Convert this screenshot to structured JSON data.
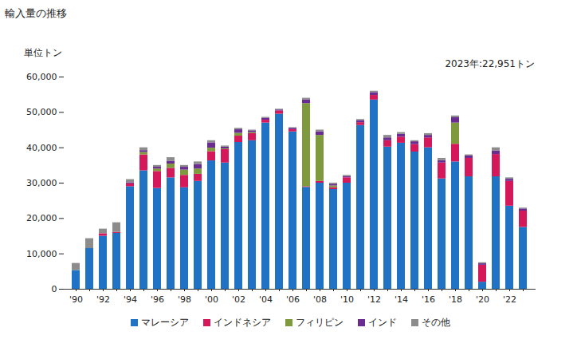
{
  "chart_data": {
    "type": "bar",
    "stacked": true,
    "title": "輸入量の推移",
    "y_label": "単位トン",
    "annotation": "2023年:22,951トン",
    "categories": [
      "'90",
      null,
      "'92",
      null,
      "'94",
      null,
      "'96",
      null,
      "'98",
      null,
      "'00",
      null,
      "'02",
      null,
      "'04",
      null,
      "'06",
      null,
      "'08",
      null,
      "'10",
      null,
      "'12",
      null,
      "'14",
      null,
      "'16",
      null,
      "'18",
      null,
      "'20",
      null,
      "'22",
      null
    ],
    "series": [
      {
        "name": "マレーシア",
        "color": "#1f72c4",
        "values": [
          5300,
          11500,
          15000,
          15800,
          29000,
          33500,
          28500,
          31500,
          28700,
          30500,
          36300,
          35700,
          41500,
          42000,
          47000,
          49500,
          44500,
          28800,
          30000,
          28200,
          30000,
          46300,
          53500,
          40200,
          41300,
          38800,
          40000,
          31200,
          36000,
          31800,
          2000,
          31800,
          23500,
          17500
        ]
      },
      {
        "name": "インドネシア",
        "color": "#d4185a",
        "values": [
          0,
          0,
          700,
          300,
          800,
          4500,
          4800,
          2700,
          3500,
          2000,
          2600,
          3800,
          1800,
          2000,
          800,
          900,
          600,
          200,
          500,
          500,
          1500,
          800,
          1300,
          1800,
          1700,
          2100,
          2800,
          4500,
          5000,
          5200,
          4800,
          6300,
          7000,
          4600
        ]
      },
      {
        "name": "フィリピン",
        "color": "#7f9a3c",
        "values": [
          0,
          0,
          0,
          0,
          0,
          700,
          700,
          1200,
          1500,
          1500,
          1000,
          200,
          800,
          300,
          0,
          0,
          0,
          23500,
          13000,
          500,
          0,
          0,
          0,
          0,
          0,
          0,
          0,
          0,
          6000,
          0,
          0,
          0,
          0,
          0
        ]
      },
      {
        "name": "インド",
        "color": "#6a2c91",
        "values": [
          0,
          0,
          0,
          0,
          300,
          500,
          500,
          800,
          800,
          1300,
          1500,
          500,
          1000,
          500,
          600,
          300,
          400,
          1000,
          1000,
          500,
          400,
          600,
          800,
          800,
          800,
          800,
          700,
          700,
          1500,
          700,
          400,
          1000,
          600,
          600
        ]
      },
      {
        "name": "その他",
        "color": "#8c8c8c",
        "values": [
          2000,
          2800,
          1300,
          2700,
          900,
          800,
          500,
          1000,
          500,
          700,
          600,
          300,
          400,
          200,
          200,
          200,
          200,
          500,
          500,
          300,
          300,
          300,
          400,
          700,
          500,
          300,
          500,
          600,
          500,
          300,
          300,
          900,
          400,
          251
        ]
      }
    ],
    "ylim": [
      0,
      60000
    ],
    "yticks": [
      0,
      {
        "value": 10000,
        "label": "10,000"
      },
      {
        "value": 20000,
        "label": "20,000"
      },
      {
        "value": 30000,
        "label": "30,000"
      },
      {
        "value": 40000,
        "label": "40,000"
      },
      {
        "value": 50000,
        "label": "50,000"
      },
      {
        "value": 60000,
        "label": "60,000"
      }
    ],
    "grid": false,
    "legend": "bottom"
  }
}
